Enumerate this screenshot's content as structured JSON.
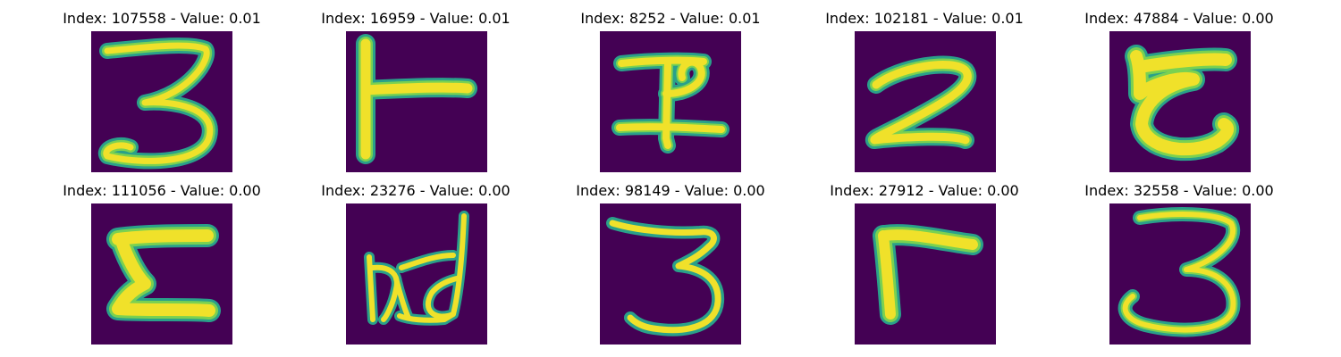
{
  "colors": {
    "background": "#440154",
    "stroke_core": "#f0e12a",
    "stroke_edge": "#2aa08a",
    "stroke_mid": "#7ad151",
    "title_text": "#000000"
  },
  "panels": [
    {
      "title": "Index: 107558 - Value: 0.01",
      "glyph": "digit-3-with-loop"
    },
    {
      "title": "Index: 16959 - Value: 0.01",
      "glyph": "t-rotated"
    },
    {
      "title": "Index: 8252 - Value: 0.01",
      "glyph": "glyph-9-variant"
    },
    {
      "title": "Index: 102181 - Value: 0.01",
      "glyph": "digit-2"
    },
    {
      "title": "Index: 47884 - Value: 0.00",
      "glyph": "glyph-c-hook"
    },
    {
      "title": "Index: 111056 - Value: 0.00",
      "glyph": "glyph-z-bar"
    },
    {
      "title": "Index: 23276 - Value: 0.00",
      "glyph": "glyph-bd"
    },
    {
      "title": "Index: 98149 - Value: 0.00",
      "glyph": "digit-3"
    },
    {
      "title": "Index: 27912 - Value: 0.00",
      "glyph": "glyph-gamma"
    },
    {
      "title": "Index: 32558 - Value: 0.00",
      "glyph": "digit-3-open"
    }
  ]
}
